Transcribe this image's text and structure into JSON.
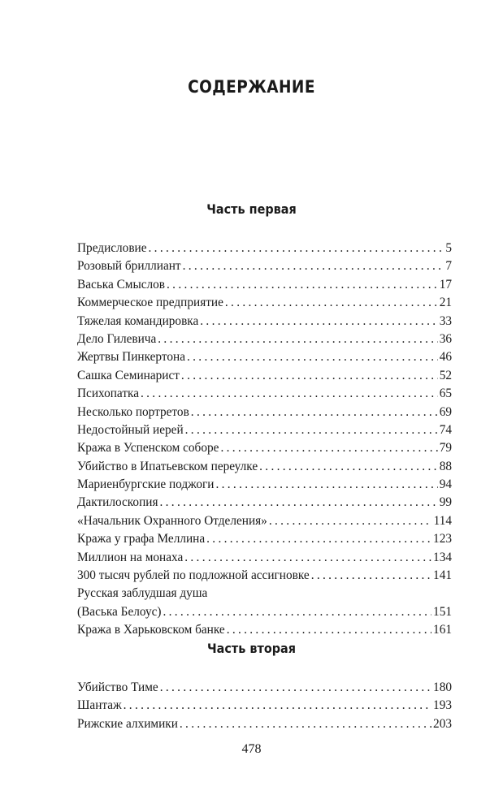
{
  "title": "СОДЕРЖАНИЕ",
  "parts": [
    {
      "heading": "Часть первая",
      "entries": [
        {
          "title": "Предисловие",
          "page": "5"
        },
        {
          "title": "Розовый бриллиант",
          "page": "7"
        },
        {
          "title": "Васька Смыслов",
          "page": "17"
        },
        {
          "title": "Коммерческое предприятие",
          "page": "21"
        },
        {
          "title": "Тяжелая командировка",
          "page": "33"
        },
        {
          "title": "Дело Гилевича",
          "page": "36"
        },
        {
          "title": "Жертвы Пинкертона",
          "page": "46"
        },
        {
          "title": "Сашка Семинарист",
          "page": "52"
        },
        {
          "title": "Психопатка",
          "page": "65"
        },
        {
          "title": "Несколько портретов",
          "page": "69"
        },
        {
          "title": "Недостойный иерей",
          "page": "74"
        },
        {
          "title": "Кража в Успенском соборе",
          "page": "79"
        },
        {
          "title": "Убийство в Ипатьевском переулке",
          "page": "88"
        },
        {
          "title": "Мариенбургские поджоги",
          "page": "94"
        },
        {
          "title": "Дактилоскопия",
          "page": "99"
        },
        {
          "title": "«Начальник Охранного Отделения»",
          "page": "114"
        },
        {
          "title": "Кража у графа Меллина",
          "page": "123"
        },
        {
          "title": "Миллион на монаха",
          "page": "134"
        },
        {
          "title": "300 тысяч рублей по подложной ассигновке",
          "page": "141"
        },
        {
          "title": "Русская заблудшая душа",
          "page": ""
        },
        {
          "title": "(Васька Белоус)",
          "page": "151"
        },
        {
          "title": "Кража в Харьковском банке",
          "page": "161"
        }
      ]
    },
    {
      "heading": "Часть вторая",
      "entries": [
        {
          "title": "Убийство Тиме",
          "page": "180"
        },
        {
          "title": "Шантаж",
          "page": "193"
        },
        {
          "title": "Рижские алхимики",
          "page": "203"
        }
      ]
    }
  ],
  "page_number": "478"
}
